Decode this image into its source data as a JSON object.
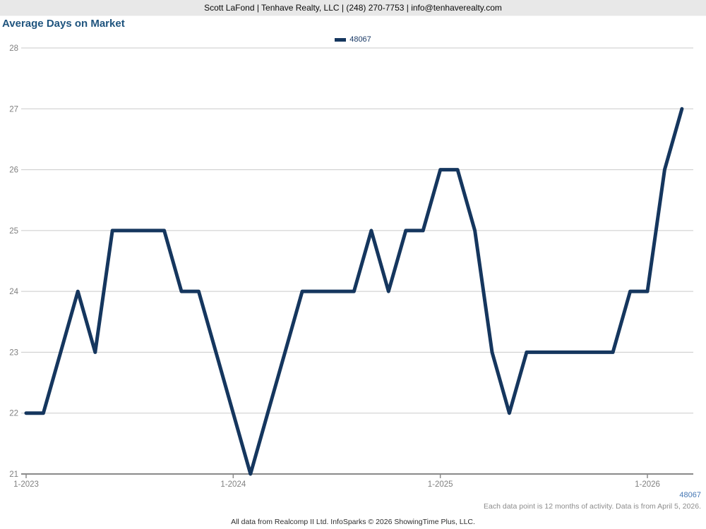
{
  "header": {
    "contact_line": "Scott LaFond | Tenhave Realty, LLC | (248) 270-7753 | info@tenhaverealty.com"
  },
  "title": "Average Days on Market",
  "legend": {
    "label": "48067"
  },
  "colors": {
    "line": "#15365e",
    "title_text": "#1f547e",
    "grid": "#cacaca",
    "axis": "#8a8a8a",
    "axis_text": "#808080",
    "link": "#4577b4"
  },
  "chart_data": {
    "type": "line",
    "title": "Average Days on Market",
    "xlabel": "",
    "ylabel": "",
    "ylim": [
      21,
      28
    ],
    "yticks": [
      21,
      22,
      23,
      24,
      25,
      26,
      27,
      28
    ],
    "grid": true,
    "legend_position": "top-center",
    "x": [
      "1-2023",
      "2-2023",
      "3-2023",
      "4-2023",
      "5-2023",
      "6-2023",
      "7-2023",
      "8-2023",
      "9-2023",
      "10-2023",
      "11-2023",
      "12-2023",
      "1-2024",
      "2-2024",
      "3-2024",
      "4-2024",
      "5-2024",
      "6-2024",
      "7-2024",
      "8-2024",
      "9-2024",
      "10-2024",
      "11-2024",
      "12-2024",
      "1-2025",
      "2-2025",
      "3-2025",
      "4-2025",
      "5-2025",
      "6-2025",
      "7-2025",
      "8-2025",
      "9-2025",
      "10-2025",
      "11-2025",
      "12-2025",
      "1-2026",
      "2-2026",
      "3-2026"
    ],
    "xticks": [
      "1-2023",
      "1-2024",
      "1-2025",
      "1-2026"
    ],
    "series": [
      {
        "name": "48067",
        "color": "#15365e",
        "values": [
          22,
          22,
          23,
          24,
          23,
          25,
          25,
          25,
          25,
          24,
          24,
          23,
          22,
          21,
          22,
          23,
          24,
          24,
          24,
          24,
          25,
          24,
          25,
          25,
          26,
          26,
          25,
          23,
          22,
          23,
          23,
          23,
          23,
          23,
          23,
          24,
          24,
          26,
          27
        ]
      }
    ]
  },
  "footer": {
    "zip_label": "48067",
    "note": "Each data point is 12 months of activity. Data is from April 5, 2026.",
    "attribution": "All data from Realcomp II Ltd. InfoSparks © 2026 ShowingTime Plus, LLC."
  }
}
